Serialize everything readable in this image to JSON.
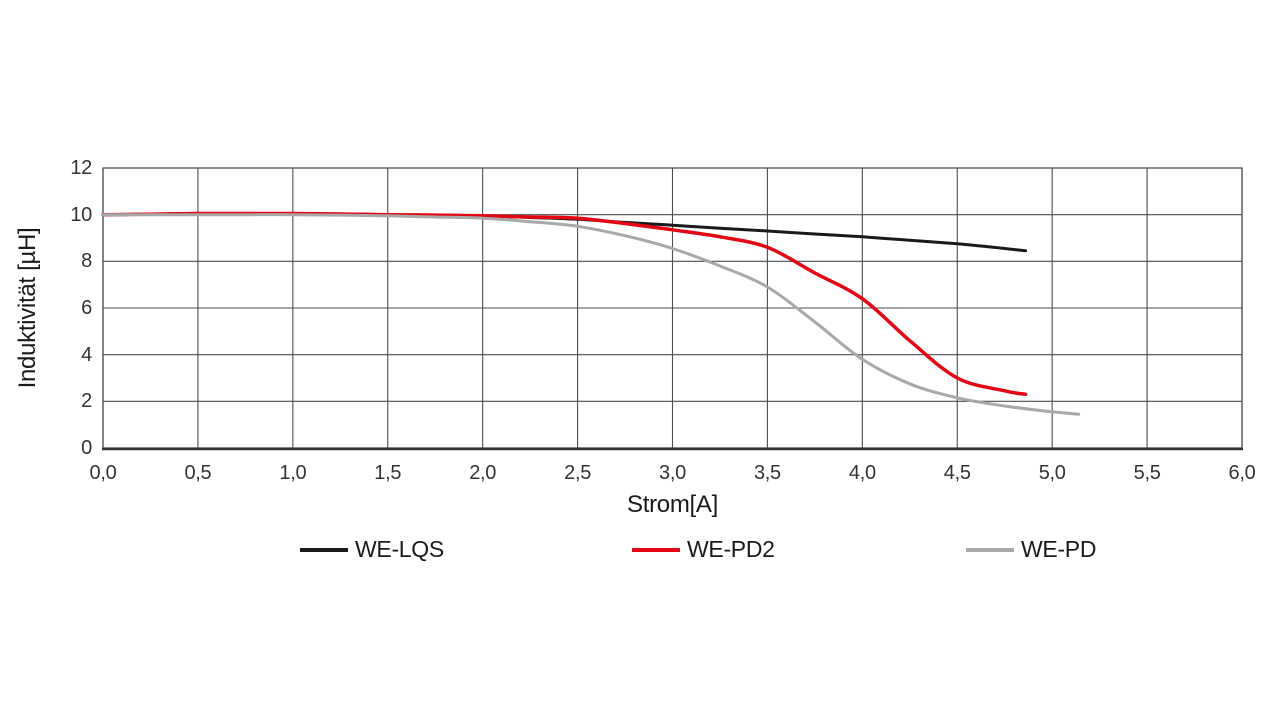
{
  "page": {
    "background_color": "#ffffff"
  },
  "chart_data": {
    "type": "line",
    "title": "",
    "xlabel": "Strom[A]",
    "ylabel": "Induktivität [µH]",
    "xlim": [
      0,
      6
    ],
    "ylim": [
      0,
      12
    ],
    "grid": true,
    "legend_position": "bottom",
    "grid_color": "#4d4d4d",
    "axis_color": "#333333",
    "tick_color": "#333333",
    "x_ticks": [
      {
        "value": 0.0,
        "label": "0,0"
      },
      {
        "value": 0.5,
        "label": "0,5"
      },
      {
        "value": 1.0,
        "label": "1,0"
      },
      {
        "value": 1.5,
        "label": "1,5"
      },
      {
        "value": 2.0,
        "label": "2,0"
      },
      {
        "value": 2.5,
        "label": "2,5"
      },
      {
        "value": 3.0,
        "label": "3,0"
      },
      {
        "value": 3.5,
        "label": "3,5"
      },
      {
        "value": 4.0,
        "label": "4,0"
      },
      {
        "value": 4.5,
        "label": "4,5"
      },
      {
        "value": 5.0,
        "label": "5,0"
      },
      {
        "value": 5.5,
        "label": "5,5"
      },
      {
        "value": 6.0,
        "label": "6,0"
      }
    ],
    "y_ticks": [
      {
        "value": 0,
        "label": "0"
      },
      {
        "value": 2,
        "label": "2"
      },
      {
        "value": 4,
        "label": "4"
      },
      {
        "value": 6,
        "label": "6"
      },
      {
        "value": 8,
        "label": "8"
      },
      {
        "value": 10,
        "label": "10"
      },
      {
        "value": 12,
        "label": "12"
      }
    ],
    "series": [
      {
        "name": "WE-LQS",
        "color": "#1a1a1a",
        "width": 3,
        "points": [
          [
            0.0,
            10.0
          ],
          [
            0.25,
            10.02
          ],
          [
            0.5,
            10.05
          ],
          [
            0.75,
            10.05
          ],
          [
            1.0,
            10.05
          ],
          [
            1.25,
            10.03
          ],
          [
            1.5,
            10.0
          ],
          [
            1.75,
            9.98
          ],
          [
            2.0,
            9.95
          ],
          [
            2.25,
            9.88
          ],
          [
            2.5,
            9.8
          ],
          [
            2.75,
            9.67
          ],
          [
            3.0,
            9.55
          ],
          [
            3.25,
            9.42
          ],
          [
            3.5,
            9.3
          ],
          [
            3.75,
            9.17
          ],
          [
            4.0,
            9.05
          ],
          [
            4.25,
            8.9
          ],
          [
            4.5,
            8.75
          ],
          [
            4.75,
            8.55
          ],
          [
            4.86,
            8.45
          ]
        ]
      },
      {
        "name": "WE-PD2",
        "color": "#e30613",
        "width": 3.5,
        "points": [
          [
            0.0,
            10.0
          ],
          [
            0.25,
            10.02
          ],
          [
            0.5,
            10.05
          ],
          [
            0.75,
            10.05
          ],
          [
            1.0,
            10.05
          ],
          [
            1.25,
            10.03
          ],
          [
            1.5,
            10.0
          ],
          [
            1.75,
            9.98
          ],
          [
            2.0,
            9.95
          ],
          [
            2.25,
            9.9
          ],
          [
            2.5,
            9.85
          ],
          [
            2.75,
            9.62
          ],
          [
            3.0,
            9.35
          ],
          [
            3.25,
            9.05
          ],
          [
            3.5,
            8.6
          ],
          [
            3.75,
            7.5
          ],
          [
            4.0,
            6.4
          ],
          [
            4.25,
            4.6
          ],
          [
            4.5,
            3.0
          ],
          [
            4.75,
            2.45
          ],
          [
            4.86,
            2.3
          ]
        ]
      },
      {
        "name": "WE-PD",
        "color": "#a8a8a8",
        "width": 3,
        "points": [
          [
            0.0,
            10.0
          ],
          [
            0.25,
            10.0
          ],
          [
            0.5,
            10.0
          ],
          [
            0.75,
            10.0
          ],
          [
            1.0,
            10.0
          ],
          [
            1.25,
            9.98
          ],
          [
            1.5,
            9.95
          ],
          [
            1.75,
            9.9
          ],
          [
            2.0,
            9.85
          ],
          [
            2.25,
            9.7
          ],
          [
            2.5,
            9.5
          ],
          [
            2.75,
            9.1
          ],
          [
            3.0,
            8.55
          ],
          [
            3.25,
            7.8
          ],
          [
            3.5,
            6.9
          ],
          [
            3.75,
            5.4
          ],
          [
            4.0,
            3.8
          ],
          [
            4.25,
            2.75
          ],
          [
            4.5,
            2.15
          ],
          [
            4.75,
            1.8
          ],
          [
            5.0,
            1.55
          ],
          [
            5.14,
            1.45
          ]
        ]
      }
    ]
  }
}
